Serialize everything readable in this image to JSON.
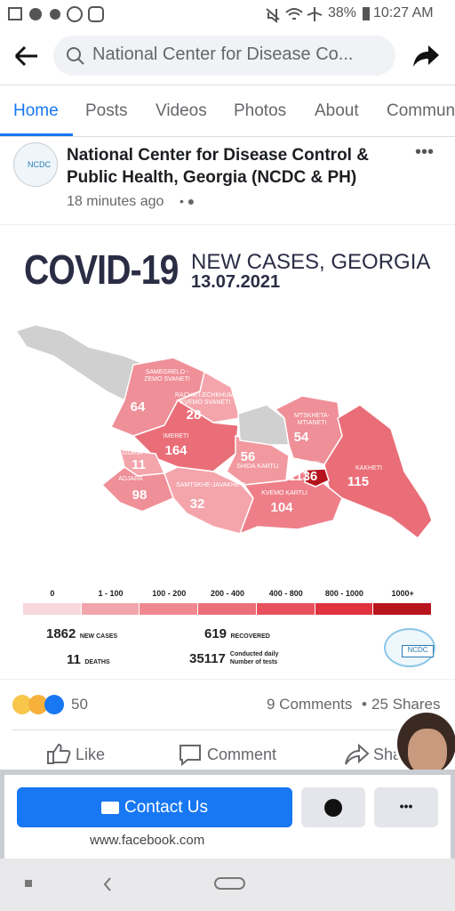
{
  "status_bar": {
    "battery": "38%",
    "time": "10:27 AM"
  },
  "search": {
    "query": "National Center for Disease Co..."
  },
  "tabs": [
    "Home",
    "Posts",
    "Videos",
    "Photos",
    "About",
    "Commun"
  ],
  "post": {
    "author": "National Center for Disease Control & Public Health, Georgia (NCDC & PH)",
    "time": "18 minutes ago",
    "avatar_label": "NCDC"
  },
  "infographic": {
    "title": "COVID-19",
    "subtitle": "NEW CASES, GEORGIA",
    "date": "13.07.2021",
    "regions": [
      {
        "name": "SAMEGRELO - ZEMO SVANETI",
        "value": 64
      },
      {
        "name": "RACHA-LECHKHUMI KVEMO SVANETI",
        "value": 28
      },
      {
        "name": "IMERETI",
        "value": 164
      },
      {
        "name": "GURIA",
        "value": 11
      },
      {
        "name": "ADJARA",
        "value": 98
      },
      {
        "name": "SAMTSKHE-JAVAKHETI",
        "value": 32
      },
      {
        "name": "SHIDA KARTLI",
        "value": 56
      },
      {
        "name": "MTSKHETA-MTIANETI",
        "value": 54
      },
      {
        "name": "TBILISI",
        "value": 1136
      },
      {
        "name": "KVEMO KARTLI",
        "value": 104
      },
      {
        "name": "KAKHETI",
        "value": 115
      }
    ],
    "legend": [
      "0",
      "1 - 100",
      "100 - 200",
      "200 - 400",
      "400 - 800",
      "800 - 1000",
      "1000+"
    ],
    "stats": [
      {
        "value": 1862,
        "label": "NEW CASES"
      },
      {
        "value": 619,
        "label": "RECOVERED"
      },
      {
        "value": 11,
        "label": "DEATHS"
      },
      {
        "value": 35117,
        "label": "Conducted daily Number of tests"
      }
    ],
    "logo": "NCDC"
  },
  "reactions": {
    "count": 50,
    "comments": "9 Comments",
    "shares": "25 Shares"
  },
  "actions": [
    "Like",
    "Comment",
    "Share"
  ],
  "contact": {
    "button": "Contact Us",
    "url": "www.facebook.com"
  }
}
